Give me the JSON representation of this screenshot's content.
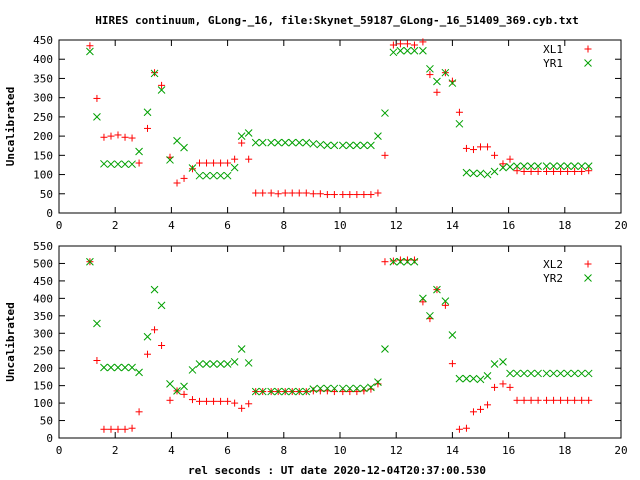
{
  "chart_data": [
    {
      "type": "scatter",
      "title": "HIRES continuum, GLong-_16, file:Skynet_59187_GLong-_16_51409_369.cyb.txt",
      "xlabel": "",
      "ylabel": "Uncalibrated",
      "xlim": [
        0,
        20
      ],
      "ylim": [
        0,
        450
      ],
      "xticks": [
        0,
        2,
        4,
        6,
        8,
        10,
        12,
        14,
        16,
        18,
        20
      ],
      "yticks": [
        0,
        50,
        100,
        150,
        200,
        250,
        300,
        350,
        400,
        450
      ],
      "legend_position": "top-right",
      "series": [
        {
          "name": "XL1",
          "color": "#ff0000",
          "marker": "plus",
          "x": [
            1.1,
            1.35,
            1.6,
            1.85,
            2.1,
            2.35,
            2.6,
            2.85,
            3.15,
            3.4,
            3.65,
            3.95,
            4.2,
            4.45,
            4.75,
            5.0,
            5.25,
            5.5,
            5.75,
            6.0,
            6.25,
            6.5,
            6.75,
            7.0,
            7.25,
            7.55,
            7.8,
            8.05,
            8.3,
            8.55,
            8.8,
            9.05,
            9.3,
            9.55,
            9.8,
            10.1,
            10.35,
            10.6,
            10.85,
            11.1,
            11.35,
            11.6,
            11.9,
            12.15,
            12.4,
            12.65,
            12.95,
            13.2,
            13.45,
            13.75,
            14.0,
            14.25,
            14.5,
            14.75,
            15.0,
            15.25,
            15.5,
            15.8,
            16.05,
            16.3,
            16.55,
            16.8,
            17.05,
            17.35,
            17.6,
            17.85,
            18.1,
            18.35,
            18.6,
            18.85
          ],
          "y": [
            435,
            298,
            197,
            200,
            203,
            197,
            195,
            130,
            220,
            365,
            332,
            145,
            78,
            90,
            115,
            130,
            130,
            130,
            130,
            130,
            140,
            182,
            140,
            52,
            52,
            52,
            50,
            52,
            52,
            52,
            52,
            50,
            50,
            48,
            48,
            48,
            48,
            48,
            48,
            48,
            52,
            150,
            437,
            440,
            440,
            437,
            445,
            360,
            314,
            365,
            343,
            262,
            168,
            165,
            172,
            172,
            150,
            128,
            140,
            110,
            108,
            108,
            108,
            108,
            108,
            108,
            108,
            108,
            108,
            110
          ],
          "x_note": "",
          "y_note": ""
        },
        {
          "name": "YR1",
          "color": "#00a000",
          "marker": "cross",
          "x": [
            1.1,
            1.35,
            1.6,
            1.85,
            2.1,
            2.35,
            2.6,
            2.85,
            3.15,
            3.4,
            3.65,
            3.95,
            4.2,
            4.45,
            4.75,
            5.0,
            5.25,
            5.5,
            5.75,
            6.0,
            6.25,
            6.5,
            6.75,
            7.0,
            7.25,
            7.55,
            7.8,
            8.05,
            8.3,
            8.55,
            8.8,
            9.05,
            9.3,
            9.55,
            9.8,
            10.1,
            10.35,
            10.6,
            10.85,
            11.1,
            11.35,
            11.6,
            11.9,
            12.15,
            12.4,
            12.65,
            12.95,
            13.2,
            13.45,
            13.75,
            14.0,
            14.25,
            14.5,
            14.75,
            15.0,
            15.25,
            15.5,
            15.8,
            16.05,
            16.3,
            16.55,
            16.8,
            17.05,
            17.35,
            17.6,
            17.85,
            18.1,
            18.35,
            18.6,
            18.85
          ],
          "y": [
            420,
            250,
            128,
            127,
            127,
            127,
            127,
            160,
            262,
            363,
            320,
            138,
            188,
            170,
            117,
            97,
            97,
            97,
            97,
            97,
            118,
            200,
            208,
            183,
            183,
            183,
            183,
            183,
            183,
            183,
            183,
            180,
            178,
            176,
            176,
            176,
            176,
            176,
            176,
            176,
            200,
            260,
            418,
            422,
            422,
            422,
            422,
            375,
            342,
            365,
            338,
            232,
            105,
            103,
            103,
            100,
            108,
            118,
            120,
            122,
            122,
            122,
            122,
            122,
            122,
            122,
            122,
            122,
            122,
            122
          ]
        }
      ]
    },
    {
      "type": "scatter",
      "title": "",
      "xlabel": "rel seconds : UT date 2020-12-04T20:37:00.530",
      "ylabel": "Uncalibrated",
      "xlim": [
        0,
        20
      ],
      "ylim": [
        0,
        550
      ],
      "xticks": [
        0,
        2,
        4,
        6,
        8,
        10,
        12,
        14,
        16,
        18,
        20
      ],
      "yticks": [
        0,
        50,
        100,
        150,
        200,
        250,
        300,
        350,
        400,
        450,
        500,
        550
      ],
      "legend_position": "top-right",
      "series": [
        {
          "name": "XL2",
          "color": "#ff0000",
          "marker": "plus",
          "x": [
            1.1,
            1.35,
            1.6,
            1.85,
            2.1,
            2.35,
            2.6,
            2.85,
            3.15,
            3.4,
            3.65,
            3.95,
            4.2,
            4.45,
            4.75,
            5.0,
            5.25,
            5.5,
            5.75,
            6.0,
            6.25,
            6.5,
            6.75,
            7.0,
            7.25,
            7.55,
            7.8,
            8.05,
            8.3,
            8.55,
            8.8,
            9.05,
            9.3,
            9.55,
            9.8,
            10.1,
            10.35,
            10.6,
            10.85,
            11.1,
            11.35,
            11.6,
            11.9,
            12.15,
            12.4,
            12.65,
            12.95,
            13.2,
            13.45,
            13.75,
            14.0,
            14.25,
            14.5,
            14.75,
            15.0,
            15.25,
            15.5,
            15.8,
            16.05,
            16.3,
            16.55,
            16.8,
            17.05,
            17.35,
            17.6,
            17.85,
            18.1,
            18.35,
            18.6,
            18.85
          ],
          "y": [
            505,
            222,
            25,
            25,
            25,
            25,
            28,
            75,
            240,
            310,
            265,
            108,
            135,
            125,
            110,
            105,
            105,
            105,
            105,
            105,
            100,
            85,
            98,
            133,
            133,
            133,
            133,
            133,
            133,
            133,
            133,
            135,
            135,
            135,
            133,
            133,
            133,
            133,
            135,
            140,
            155,
            505,
            507,
            510,
            510,
            510,
            390,
            342,
            425,
            380,
            213,
            25,
            28,
            75,
            82,
            95,
            145,
            155,
            145,
            108,
            108,
            108,
            108,
            108,
            108,
            108,
            108,
            108,
            108,
            108
          ]
        },
        {
          "name": "YR2",
          "color": "#00a000",
          "marker": "cross",
          "x": [
            1.1,
            1.35,
            1.6,
            1.85,
            2.1,
            2.35,
            2.6,
            2.85,
            3.15,
            3.4,
            3.65,
            3.95,
            4.2,
            4.45,
            4.75,
            5.0,
            5.25,
            5.5,
            5.75,
            6.0,
            6.25,
            6.5,
            6.75,
            7.0,
            7.25,
            7.55,
            7.8,
            8.05,
            8.3,
            8.55,
            8.8,
            9.05,
            9.3,
            9.55,
            9.8,
            10.1,
            10.35,
            10.6,
            10.85,
            11.1,
            11.35,
            11.6,
            11.9,
            12.15,
            12.4,
            12.65,
            12.95,
            13.2,
            13.45,
            13.75,
            14.0,
            14.25,
            14.5,
            14.75,
            15.0,
            15.25,
            15.5,
            15.8,
            16.05,
            16.3,
            16.55,
            16.8,
            17.05,
            17.35,
            17.6,
            17.85,
            18.1,
            18.35,
            18.6,
            18.85
          ],
          "y": [
            505,
            328,
            202,
            202,
            202,
            202,
            202,
            188,
            290,
            425,
            380,
            155,
            135,
            148,
            195,
            212,
            212,
            212,
            212,
            212,
            218,
            255,
            215,
            133,
            133,
            133,
            133,
            133,
            133,
            133,
            133,
            140,
            142,
            142,
            142,
            142,
            142,
            142,
            142,
            145,
            160,
            255,
            505,
            505,
            505,
            505,
            400,
            350,
            425,
            392,
            295,
            170,
            170,
            170,
            168,
            178,
            212,
            218,
            185,
            185,
            185,
            185,
            185,
            185,
            185,
            185,
            185,
            185,
            185,
            185
          ]
        }
      ]
    }
  ]
}
